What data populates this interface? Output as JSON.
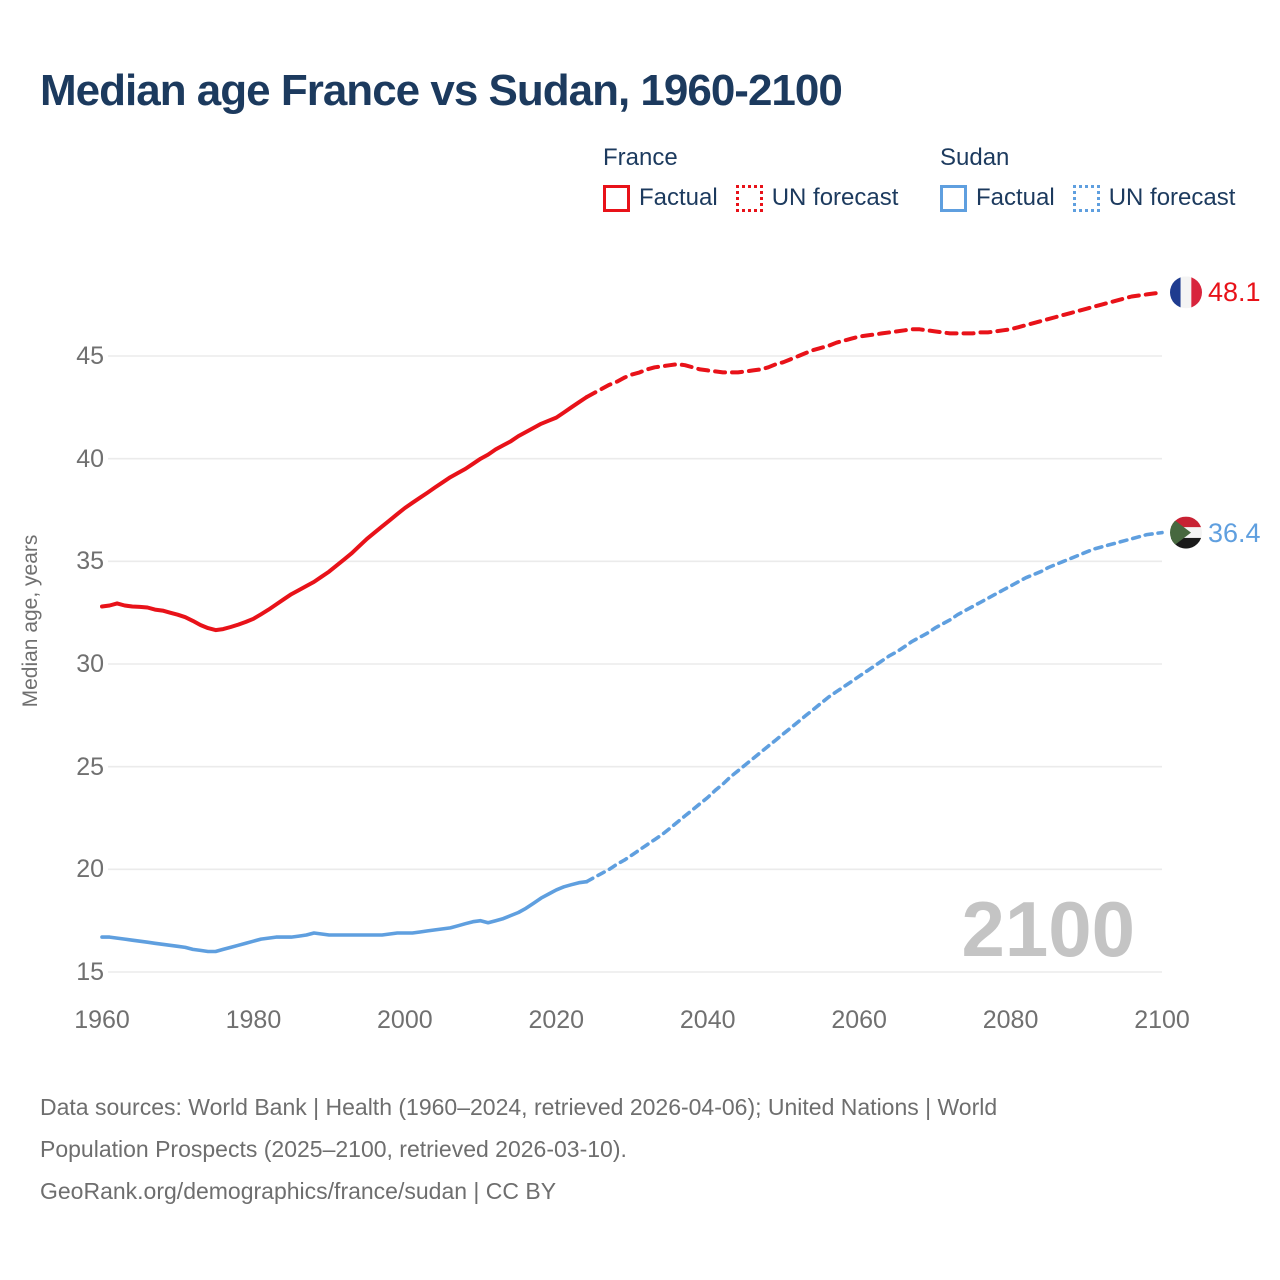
{
  "title": "Median age France vs Sudan, 1960-2100",
  "legend": {
    "groups": [
      {
        "name": "France",
        "items": [
          {
            "label": "Factual",
            "style": "solid"
          },
          {
            "label": "UN forecast",
            "style": "dotted"
          }
        ]
      },
      {
        "name": "Sudan",
        "items": [
          {
            "label": "Factual",
            "style": "solid"
          },
          {
            "label": "UN forecast",
            "style": "dotted"
          }
        ]
      }
    ]
  },
  "watermark": "2100",
  "end_labels": {
    "france": "48.1",
    "sudan": "36.4"
  },
  "footer": {
    "line1": "Data sources: World Bank | Health (1960–2024, retrieved 2026-04-06); United Nations | World",
    "line2": "Population Prospects (2025–2100, retrieved 2026-03-10).",
    "line3": "GeoRank.org/demographics/france/sudan | CC BY"
  },
  "colors": {
    "france": "#e81219",
    "sudan": "#5f9fdf",
    "title_text": "#1c3a5e",
    "axis_text": "#707070",
    "gridline": "#ebebeb",
    "watermark": "#c4c4c4",
    "footer_text": "#6e6e6e"
  },
  "chart_data": {
    "type": "line",
    "title": "Median age France vs Sudan, 1960-2100",
    "xlabel": "",
    "ylabel": "Median age, years",
    "xlim": [
      1960,
      2100
    ],
    "ylim": [
      15,
      49
    ],
    "grid": "horizontal",
    "legend_position": "top-right",
    "xticks": [
      1960,
      1980,
      2000,
      2020,
      2040,
      2060,
      2080,
      2100
    ],
    "yticks": [
      15,
      20,
      25,
      30,
      35,
      40,
      45
    ],
    "end_values": {
      "france": 48.1,
      "sudan": 36.4
    },
    "series": [
      {
        "name": "France Factual",
        "country": "france",
        "line_style": "solid",
        "color": "#e81219",
        "points": [
          [
            1960,
            32.8
          ],
          [
            1961,
            32.85
          ],
          [
            1962,
            32.95
          ],
          [
            1963,
            32.85
          ],
          [
            1964,
            32.8
          ],
          [
            1965,
            32.78
          ],
          [
            1966,
            32.75
          ],
          [
            1967,
            32.65
          ],
          [
            1968,
            32.6
          ],
          [
            1969,
            32.5
          ],
          [
            1970,
            32.4
          ],
          [
            1971,
            32.28
          ],
          [
            1972,
            32.1
          ],
          [
            1973,
            31.9
          ],
          [
            1974,
            31.75
          ],
          [
            1975,
            31.65
          ],
          [
            1976,
            31.7
          ],
          [
            1977,
            31.8
          ],
          [
            1978,
            31.92
          ],
          [
            1979,
            32.05
          ],
          [
            1980,
            32.2
          ],
          [
            1981,
            32.42
          ],
          [
            1982,
            32.65
          ],
          [
            1983,
            32.9
          ],
          [
            1984,
            33.15
          ],
          [
            1985,
            33.4
          ],
          [
            1986,
            33.6
          ],
          [
            1987,
            33.8
          ],
          [
            1988,
            34.0
          ],
          [
            1989,
            34.25
          ],
          [
            1990,
            34.5
          ],
          [
            1991,
            34.8
          ],
          [
            1992,
            35.1
          ],
          [
            1993,
            35.4
          ],
          [
            1994,
            35.75
          ],
          [
            1995,
            36.1
          ],
          [
            1996,
            36.4
          ],
          [
            1997,
            36.7
          ],
          [
            1998,
            37.0
          ],
          [
            1999,
            37.3
          ],
          [
            2000,
            37.6
          ],
          [
            2001,
            37.85
          ],
          [
            2002,
            38.1
          ],
          [
            2003,
            38.35
          ],
          [
            2004,
            38.6
          ],
          [
            2005,
            38.85
          ],
          [
            2006,
            39.1
          ],
          [
            2007,
            39.3
          ],
          [
            2008,
            39.5
          ],
          [
            2009,
            39.75
          ],
          [
            2010,
            40.0
          ],
          [
            2011,
            40.2
          ],
          [
            2012,
            40.45
          ],
          [
            2013,
            40.65
          ],
          [
            2014,
            40.85
          ],
          [
            2015,
            41.1
          ],
          [
            2016,
            41.3
          ],
          [
            2017,
            41.5
          ],
          [
            2018,
            41.7
          ],
          [
            2019,
            41.85
          ],
          [
            2020,
            42.0
          ],
          [
            2021,
            42.25
          ],
          [
            2022,
            42.5
          ],
          [
            2023,
            42.75
          ],
          [
            2024,
            43.0
          ]
        ]
      },
      {
        "name": "France UN forecast",
        "country": "france",
        "line_style": "dashed",
        "color": "#e81219",
        "points": [
          [
            2024,
            43.0
          ],
          [
            2025,
            43.2
          ],
          [
            2026,
            43.4
          ],
          [
            2027,
            43.6
          ],
          [
            2028,
            43.75
          ],
          [
            2029,
            43.95
          ],
          [
            2030,
            44.1
          ],
          [
            2031,
            44.2
          ],
          [
            2032,
            44.35
          ],
          [
            2033,
            44.45
          ],
          [
            2034,
            44.5
          ],
          [
            2035,
            44.55
          ],
          [
            2036,
            44.6
          ],
          [
            2037,
            44.55
          ],
          [
            2038,
            44.45
          ],
          [
            2039,
            44.35
          ],
          [
            2040,
            44.3
          ],
          [
            2041,
            44.25
          ],
          [
            2042,
            44.2
          ],
          [
            2043,
            44.2
          ],
          [
            2044,
            44.2
          ],
          [
            2045,
            44.25
          ],
          [
            2046,
            44.3
          ],
          [
            2047,
            44.35
          ],
          [
            2048,
            44.45
          ],
          [
            2049,
            44.6
          ],
          [
            2050,
            44.7
          ],
          [
            2051,
            44.85
          ],
          [
            2052,
            45.0
          ],
          [
            2053,
            45.15
          ],
          [
            2054,
            45.3
          ],
          [
            2055,
            45.4
          ],
          [
            2056,
            45.5
          ],
          [
            2057,
            45.65
          ],
          [
            2058,
            45.75
          ],
          [
            2059,
            45.85
          ],
          [
            2060,
            45.95
          ],
          [
            2061,
            46.0
          ],
          [
            2062,
            46.05
          ],
          [
            2063,
            46.1
          ],
          [
            2064,
            46.15
          ],
          [
            2065,
            46.2
          ],
          [
            2066,
            46.25
          ],
          [
            2067,
            46.3
          ],
          [
            2068,
            46.3
          ],
          [
            2069,
            46.25
          ],
          [
            2070,
            46.2
          ],
          [
            2071,
            46.15
          ],
          [
            2072,
            46.1
          ],
          [
            2073,
            46.1
          ],
          [
            2074,
            46.1
          ],
          [
            2075,
            46.1
          ],
          [
            2076,
            46.15
          ],
          [
            2077,
            46.15
          ],
          [
            2078,
            46.2
          ],
          [
            2079,
            46.25
          ],
          [
            2080,
            46.3
          ],
          [
            2081,
            46.4
          ],
          [
            2082,
            46.5
          ],
          [
            2083,
            46.6
          ],
          [
            2084,
            46.7
          ],
          [
            2085,
            46.8
          ],
          [
            2086,
            46.9
          ],
          [
            2087,
            47.0
          ],
          [
            2088,
            47.1
          ],
          [
            2089,
            47.2
          ],
          [
            2090,
            47.3
          ],
          [
            2091,
            47.4
          ],
          [
            2092,
            47.5
          ],
          [
            2093,
            47.6
          ],
          [
            2094,
            47.7
          ],
          [
            2095,
            47.8
          ],
          [
            2096,
            47.9
          ],
          [
            2097,
            47.95
          ],
          [
            2098,
            48.0
          ],
          [
            2099,
            48.05
          ],
          [
            2100,
            48.1
          ]
        ]
      },
      {
        "name": "Sudan Factual",
        "country": "sudan",
        "line_style": "solid",
        "color": "#5f9fdf",
        "points": [
          [
            1960,
            16.7
          ],
          [
            1961,
            16.7
          ],
          [
            1962,
            16.65
          ],
          [
            1963,
            16.6
          ],
          [
            1964,
            16.55
          ],
          [
            1965,
            16.5
          ],
          [
            1966,
            16.45
          ],
          [
            1967,
            16.4
          ],
          [
            1968,
            16.35
          ],
          [
            1969,
            16.3
          ],
          [
            1970,
            16.25
          ],
          [
            1971,
            16.2
          ],
          [
            1972,
            16.1
          ],
          [
            1973,
            16.05
          ],
          [
            1974,
            16.0
          ],
          [
            1975,
            16.0
          ],
          [
            1976,
            16.1
          ],
          [
            1977,
            16.2
          ],
          [
            1978,
            16.3
          ],
          [
            1979,
            16.4
          ],
          [
            1980,
            16.5
          ],
          [
            1981,
            16.6
          ],
          [
            1982,
            16.65
          ],
          [
            1983,
            16.7
          ],
          [
            1984,
            16.7
          ],
          [
            1985,
            16.7
          ],
          [
            1986,
            16.75
          ],
          [
            1987,
            16.8
          ],
          [
            1988,
            16.9
          ],
          [
            1989,
            16.85
          ],
          [
            1990,
            16.8
          ],
          [
            1991,
            16.8
          ],
          [
            1992,
            16.8
          ],
          [
            1993,
            16.8
          ],
          [
            1994,
            16.8
          ],
          [
            1995,
            16.8
          ],
          [
            1996,
            16.8
          ],
          [
            1997,
            16.8
          ],
          [
            1998,
            16.85
          ],
          [
            1999,
            16.9
          ],
          [
            2000,
            16.9
          ],
          [
            2001,
            16.9
          ],
          [
            2002,
            16.95
          ],
          [
            2003,
            17.0
          ],
          [
            2004,
            17.05
          ],
          [
            2005,
            17.1
          ],
          [
            2006,
            17.15
          ],
          [
            2007,
            17.25
          ],
          [
            2008,
            17.35
          ],
          [
            2009,
            17.45
          ],
          [
            2010,
            17.5
          ],
          [
            2011,
            17.4
          ],
          [
            2012,
            17.5
          ],
          [
            2013,
            17.6
          ],
          [
            2014,
            17.75
          ],
          [
            2015,
            17.9
          ],
          [
            2016,
            18.1
          ],
          [
            2017,
            18.35
          ],
          [
            2018,
            18.6
          ],
          [
            2019,
            18.8
          ],
          [
            2020,
            19.0
          ],
          [
            2021,
            19.15
          ],
          [
            2022,
            19.25
          ],
          [
            2023,
            19.35
          ],
          [
            2024,
            19.4
          ]
        ]
      },
      {
        "name": "Sudan UN forecast",
        "country": "sudan",
        "line_style": "dashed",
        "color": "#5f9fdf",
        "points": [
          [
            2024,
            19.4
          ],
          [
            2025,
            19.6
          ],
          [
            2026,
            19.8
          ],
          [
            2027,
            20.0
          ],
          [
            2028,
            20.25
          ],
          [
            2029,
            20.45
          ],
          [
            2030,
            20.7
          ],
          [
            2031,
            20.95
          ],
          [
            2032,
            21.2
          ],
          [
            2033,
            21.45
          ],
          [
            2034,
            21.7
          ],
          [
            2035,
            22.0
          ],
          [
            2036,
            22.3
          ],
          [
            2037,
            22.6
          ],
          [
            2038,
            22.9
          ],
          [
            2039,
            23.2
          ],
          [
            2040,
            23.5
          ],
          [
            2041,
            23.85
          ],
          [
            2042,
            24.15
          ],
          [
            2043,
            24.5
          ],
          [
            2044,
            24.8
          ],
          [
            2045,
            25.1
          ],
          [
            2046,
            25.4
          ],
          [
            2047,
            25.7
          ],
          [
            2048,
            26.0
          ],
          [
            2049,
            26.3
          ],
          [
            2050,
            26.6
          ],
          [
            2051,
            26.9
          ],
          [
            2052,
            27.2
          ],
          [
            2053,
            27.5
          ],
          [
            2054,
            27.8
          ],
          [
            2055,
            28.1
          ],
          [
            2056,
            28.4
          ],
          [
            2057,
            28.65
          ],
          [
            2058,
            28.9
          ],
          [
            2059,
            29.15
          ],
          [
            2060,
            29.4
          ],
          [
            2061,
            29.65
          ],
          [
            2062,
            29.9
          ],
          [
            2063,
            30.15
          ],
          [
            2064,
            30.4
          ],
          [
            2065,
            30.6
          ],
          [
            2066,
            30.85
          ],
          [
            2067,
            31.1
          ],
          [
            2068,
            31.3
          ],
          [
            2069,
            31.5
          ],
          [
            2070,
            31.75
          ],
          [
            2071,
            31.95
          ],
          [
            2072,
            32.15
          ],
          [
            2073,
            32.4
          ],
          [
            2074,
            32.6
          ],
          [
            2075,
            32.8
          ],
          [
            2076,
            33.0
          ],
          [
            2077,
            33.2
          ],
          [
            2078,
            33.4
          ],
          [
            2079,
            33.6
          ],
          [
            2080,
            33.8
          ],
          [
            2081,
            34.0
          ],
          [
            2082,
            34.2
          ],
          [
            2083,
            34.35
          ],
          [
            2084,
            34.5
          ],
          [
            2085,
            34.7
          ],
          [
            2086,
            34.85
          ],
          [
            2087,
            35.0
          ],
          [
            2088,
            35.15
          ],
          [
            2089,
            35.3
          ],
          [
            2090,
            35.45
          ],
          [
            2091,
            35.6
          ],
          [
            2092,
            35.7
          ],
          [
            2093,
            35.8
          ],
          [
            2094,
            35.9
          ],
          [
            2095,
            36.0
          ],
          [
            2096,
            36.1
          ],
          [
            2097,
            36.2
          ],
          [
            2098,
            36.3
          ],
          [
            2099,
            36.35
          ],
          [
            2100,
            36.4
          ]
        ]
      }
    ]
  }
}
